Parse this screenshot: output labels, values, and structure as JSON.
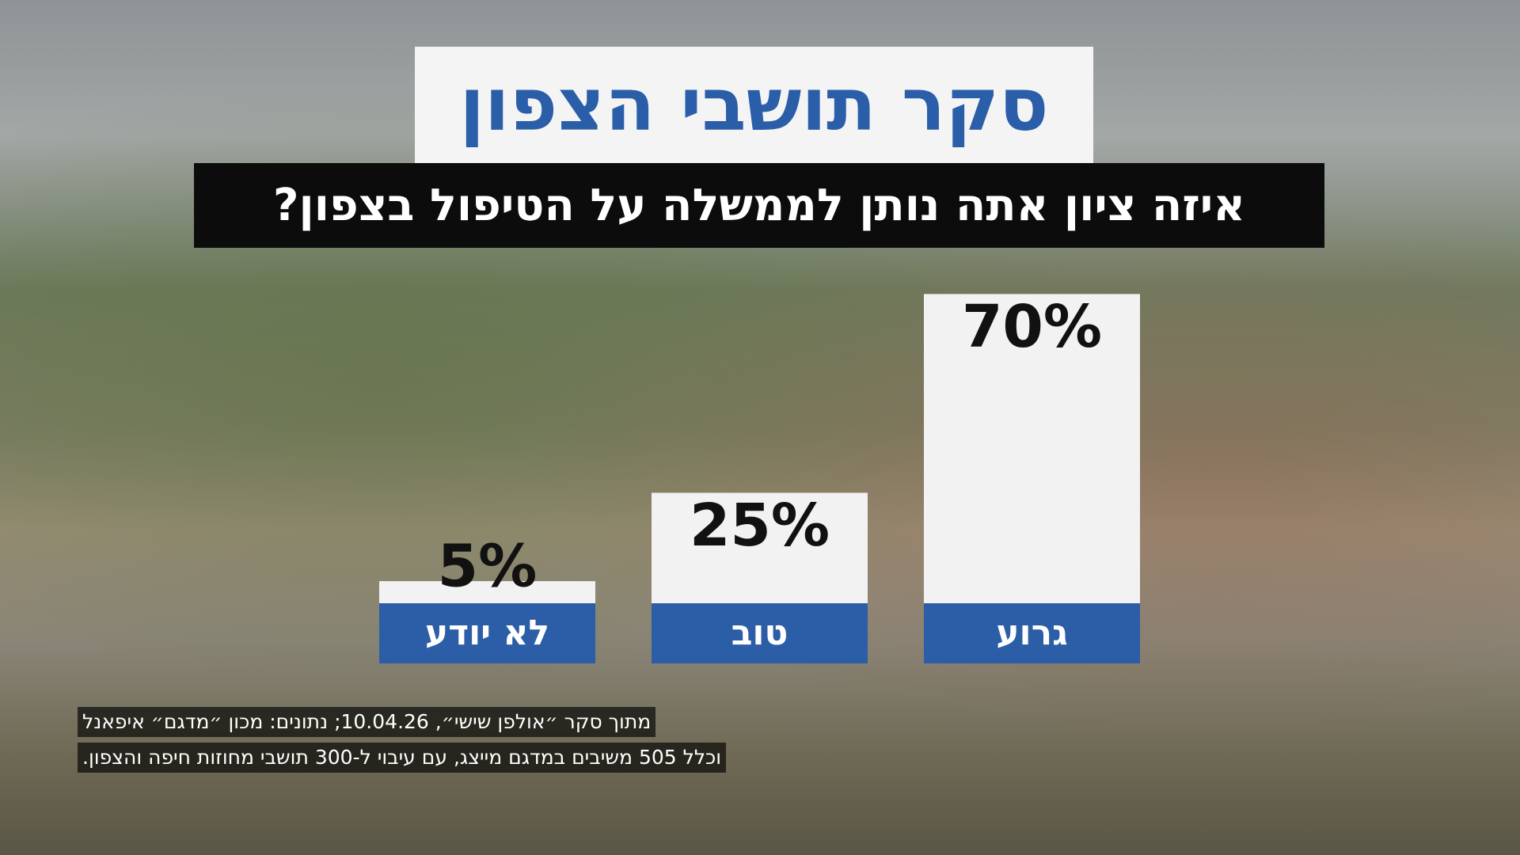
{
  "chart_data": {
    "type": "bar",
    "title": "סקר תושבי הצפון",
    "subtitle": "איזה ציון אתה נותן לממשלה על הטיפול בצפון?",
    "categories": [
      "לא יודע",
      "טוב",
      "גרוע"
    ],
    "values": [
      5,
      25,
      70
    ],
    "value_labels": [
      "5%",
      "25%",
      "70%"
    ],
    "color": "#f2f2f2",
    "label_color": "#2b5ea7",
    "notes": [
      "מתוך סקר ״אולפן שישי״, 10.04.26; נתונים: מכון ״מדגם״ איפאנל",
      "וכלל 505 משיבים במדגם מייצג, עם עיבוי ל-300 תושבי מחוזות חיפה והצפון."
    ]
  }
}
